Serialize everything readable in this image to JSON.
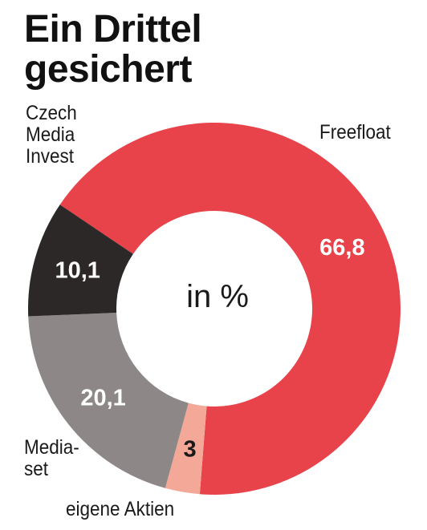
{
  "title": "Ein Drittel\ngesichert",
  "chart_data": {
    "type": "pie",
    "center_label": "in %",
    "slices": [
      {
        "name": "Freefloat",
        "value": 66.8,
        "value_label": "66,8",
        "color": "#e8424a",
        "label_color": "#ffffff"
      },
      {
        "name": "eigene Aktien",
        "value": 3,
        "value_label": "3",
        "color": "#f4a898",
        "label_color": "#1a1a1a"
      },
      {
        "name": "Media-\nset",
        "value": 20.1,
        "value_label": "20,1",
        "color": "#8d8887",
        "label_color": "#ffffff"
      },
      {
        "name": "Czech\nMedia\nInvest",
        "value": 10.1,
        "value_label": "10,1",
        "color": "#2b2827",
        "label_color": "#ffffff"
      }
    ]
  }
}
